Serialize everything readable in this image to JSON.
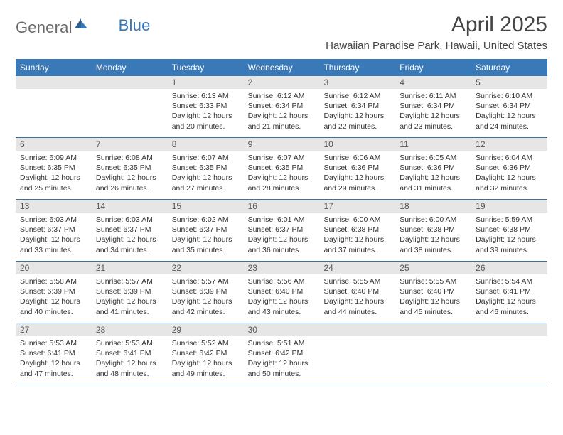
{
  "brand": {
    "text1": "General",
    "text2": "Blue"
  },
  "title": "April 2025",
  "location": "Hawaiian Paradise Park, Hawaii, United States",
  "colors": {
    "header_bg": "#3a79b7",
    "header_text": "#ffffff",
    "daynum_bg": "#e6e6e6",
    "daynum_text": "#555555",
    "rule": "#3a6fa0",
    "body_text": "#333333",
    "page_bg": "#ffffff",
    "logo_gray": "#6a6a6a",
    "logo_blue": "#3a79b7"
  },
  "day_names": [
    "Sunday",
    "Monday",
    "Tuesday",
    "Wednesday",
    "Thursday",
    "Friday",
    "Saturday"
  ],
  "weeks": [
    [
      null,
      null,
      {
        "n": "1",
        "sr": "6:13 AM",
        "ss": "6:33 PM",
        "dl": "12 hours and 20 minutes."
      },
      {
        "n": "2",
        "sr": "6:12 AM",
        "ss": "6:34 PM",
        "dl": "12 hours and 21 minutes."
      },
      {
        "n": "3",
        "sr": "6:12 AM",
        "ss": "6:34 PM",
        "dl": "12 hours and 22 minutes."
      },
      {
        "n": "4",
        "sr": "6:11 AM",
        "ss": "6:34 PM",
        "dl": "12 hours and 23 minutes."
      },
      {
        "n": "5",
        "sr": "6:10 AM",
        "ss": "6:34 PM",
        "dl": "12 hours and 24 minutes."
      }
    ],
    [
      {
        "n": "6",
        "sr": "6:09 AM",
        "ss": "6:35 PM",
        "dl": "12 hours and 25 minutes."
      },
      {
        "n": "7",
        "sr": "6:08 AM",
        "ss": "6:35 PM",
        "dl": "12 hours and 26 minutes."
      },
      {
        "n": "8",
        "sr": "6:07 AM",
        "ss": "6:35 PM",
        "dl": "12 hours and 27 minutes."
      },
      {
        "n": "9",
        "sr": "6:07 AM",
        "ss": "6:35 PM",
        "dl": "12 hours and 28 minutes."
      },
      {
        "n": "10",
        "sr": "6:06 AM",
        "ss": "6:36 PM",
        "dl": "12 hours and 29 minutes."
      },
      {
        "n": "11",
        "sr": "6:05 AM",
        "ss": "6:36 PM",
        "dl": "12 hours and 31 minutes."
      },
      {
        "n": "12",
        "sr": "6:04 AM",
        "ss": "6:36 PM",
        "dl": "12 hours and 32 minutes."
      }
    ],
    [
      {
        "n": "13",
        "sr": "6:03 AM",
        "ss": "6:37 PM",
        "dl": "12 hours and 33 minutes."
      },
      {
        "n": "14",
        "sr": "6:03 AM",
        "ss": "6:37 PM",
        "dl": "12 hours and 34 minutes."
      },
      {
        "n": "15",
        "sr": "6:02 AM",
        "ss": "6:37 PM",
        "dl": "12 hours and 35 minutes."
      },
      {
        "n": "16",
        "sr": "6:01 AM",
        "ss": "6:37 PM",
        "dl": "12 hours and 36 minutes."
      },
      {
        "n": "17",
        "sr": "6:00 AM",
        "ss": "6:38 PM",
        "dl": "12 hours and 37 minutes."
      },
      {
        "n": "18",
        "sr": "6:00 AM",
        "ss": "6:38 PM",
        "dl": "12 hours and 38 minutes."
      },
      {
        "n": "19",
        "sr": "5:59 AM",
        "ss": "6:38 PM",
        "dl": "12 hours and 39 minutes."
      }
    ],
    [
      {
        "n": "20",
        "sr": "5:58 AM",
        "ss": "6:39 PM",
        "dl": "12 hours and 40 minutes."
      },
      {
        "n": "21",
        "sr": "5:57 AM",
        "ss": "6:39 PM",
        "dl": "12 hours and 41 minutes."
      },
      {
        "n": "22",
        "sr": "5:57 AM",
        "ss": "6:39 PM",
        "dl": "12 hours and 42 minutes."
      },
      {
        "n": "23",
        "sr": "5:56 AM",
        "ss": "6:40 PM",
        "dl": "12 hours and 43 minutes."
      },
      {
        "n": "24",
        "sr": "5:55 AM",
        "ss": "6:40 PM",
        "dl": "12 hours and 44 minutes."
      },
      {
        "n": "25",
        "sr": "5:55 AM",
        "ss": "6:40 PM",
        "dl": "12 hours and 45 minutes."
      },
      {
        "n": "26",
        "sr": "5:54 AM",
        "ss": "6:41 PM",
        "dl": "12 hours and 46 minutes."
      }
    ],
    [
      {
        "n": "27",
        "sr": "5:53 AM",
        "ss": "6:41 PM",
        "dl": "12 hours and 47 minutes."
      },
      {
        "n": "28",
        "sr": "5:53 AM",
        "ss": "6:41 PM",
        "dl": "12 hours and 48 minutes."
      },
      {
        "n": "29",
        "sr": "5:52 AM",
        "ss": "6:42 PM",
        "dl": "12 hours and 49 minutes."
      },
      {
        "n": "30",
        "sr": "5:51 AM",
        "ss": "6:42 PM",
        "dl": "12 hours and 50 minutes."
      },
      null,
      null,
      null
    ]
  ],
  "labels": {
    "sunrise": "Sunrise:",
    "sunset": "Sunset:",
    "daylight": "Daylight:"
  }
}
